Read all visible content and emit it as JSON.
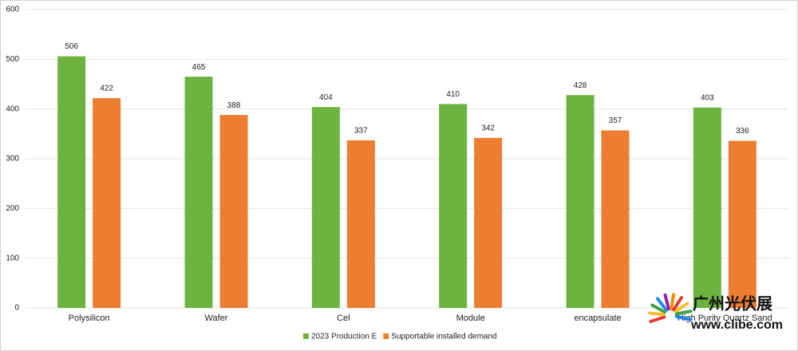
{
  "chart_data": {
    "type": "bar",
    "categories": [
      "Polysilicon",
      "Wafer",
      "Cel",
      "Module",
      "encapsulate",
      "High Purity Quartz Sand"
    ],
    "series": [
      {
        "name": "2023 Production E",
        "color": "#6db33f",
        "values": [
          506,
          465,
          404,
          410,
          428,
          403
        ]
      },
      {
        "name": "Supportable installed demand",
        "color": "#ed7d31",
        "values": [
          422,
          388,
          337,
          342,
          357,
          336
        ]
      }
    ],
    "ylim": [
      0,
      600
    ],
    "yticks": [
      0,
      100,
      200,
      300,
      400,
      500,
      600
    ],
    "grid": true,
    "legend": "bottom"
  },
  "watermark": {
    "title": "广州光伏展",
    "url": "www.clibe.com"
  }
}
